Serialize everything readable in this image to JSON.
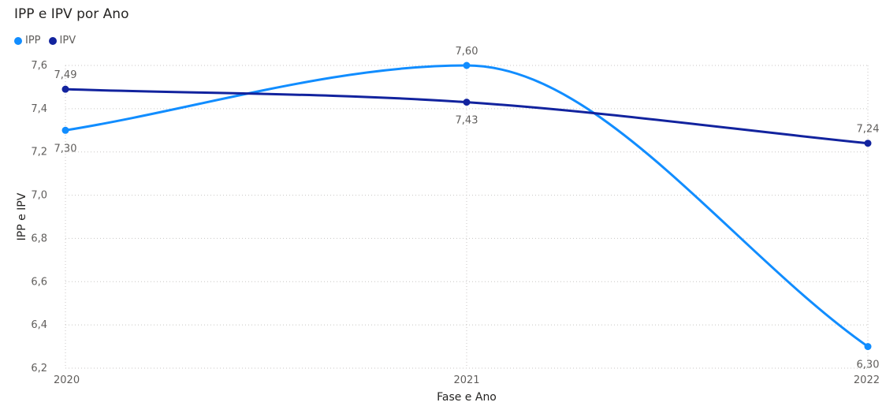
{
  "chart_data": {
    "type": "line",
    "title": "IPP e IPV por Ano",
    "xlabel": "Fase e Ano",
    "ylabel": "IPP e IPV",
    "categories": [
      "2020",
      "2021",
      "2022"
    ],
    "ylim": [
      6.2,
      7.6
    ],
    "yticks": [
      "7,6",
      "7,4",
      "7,2",
      "7,0",
      "6,8",
      "6,6",
      "6,4",
      "6,2"
    ],
    "grid": true,
    "legend_position": "top-left",
    "series": [
      {
        "name": "IPP",
        "color": "#118DFF",
        "values": [
          7.3,
          7.6,
          6.3
        ],
        "labels": [
          "7,30",
          "7,60",
          "6,30"
        ]
      },
      {
        "name": "IPV",
        "color": "#12239E",
        "values": [
          7.49,
          7.43,
          7.24
        ],
        "labels": [
          "7,49",
          "7,43",
          "7,24"
        ]
      }
    ]
  }
}
